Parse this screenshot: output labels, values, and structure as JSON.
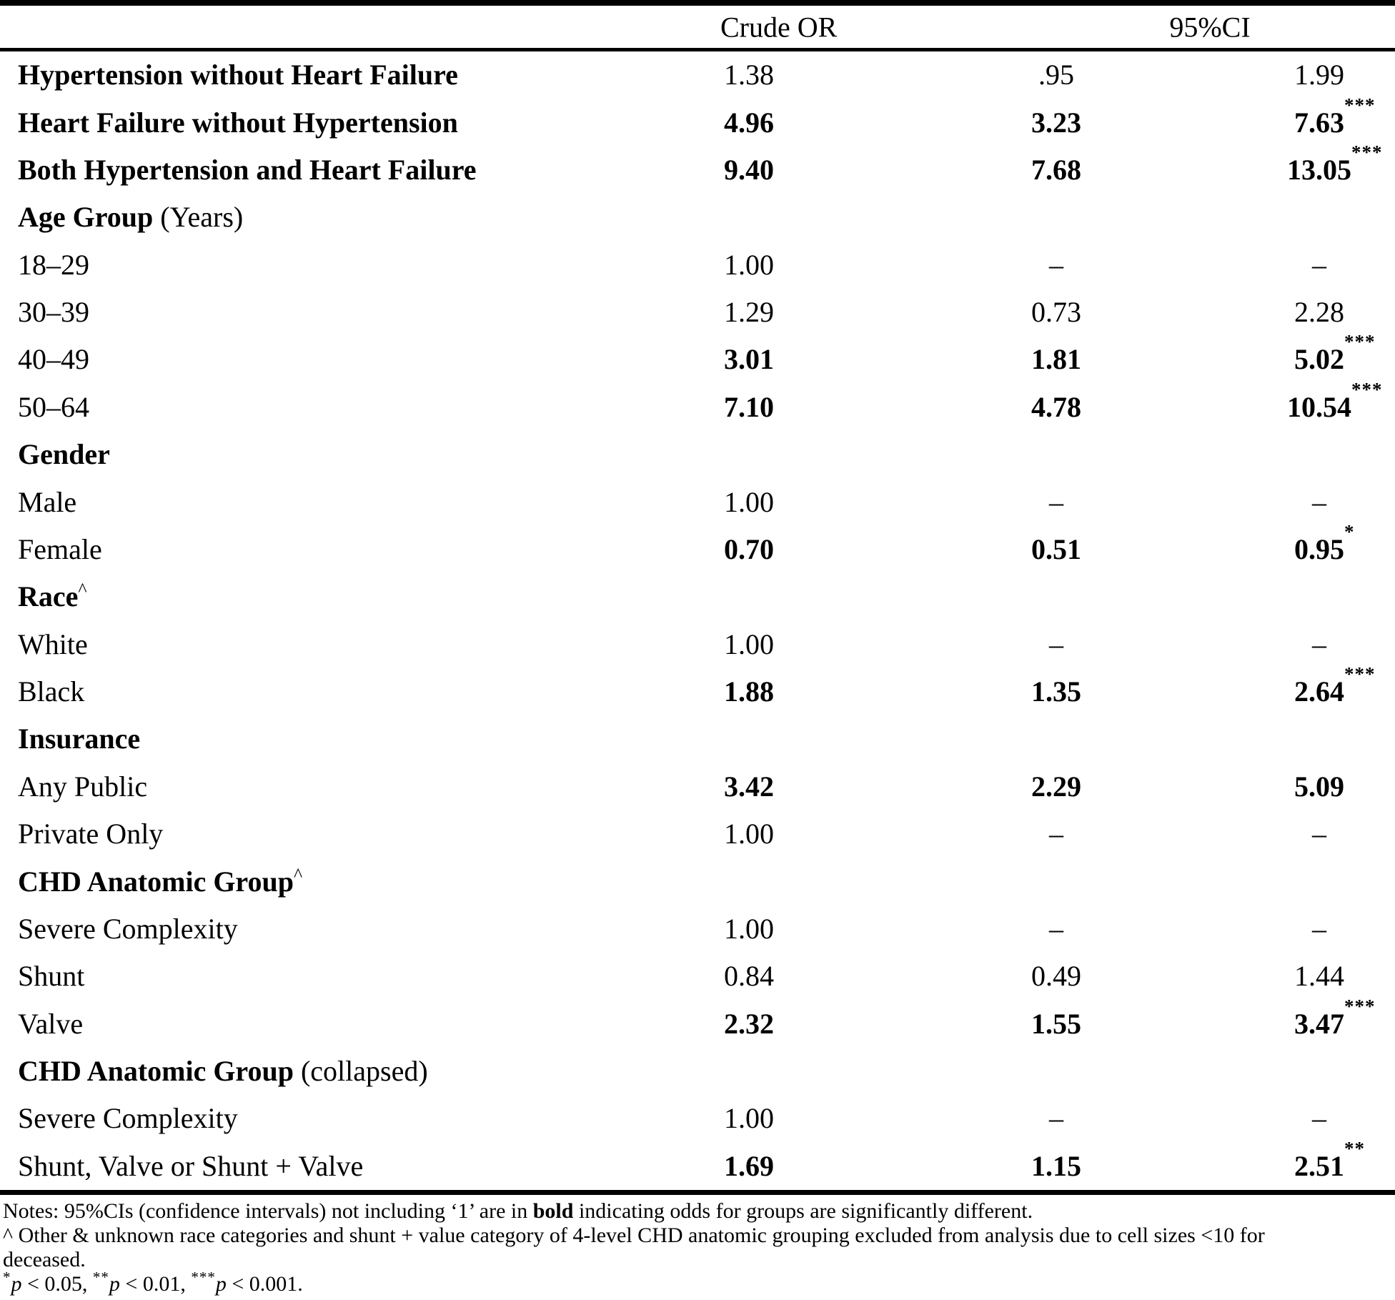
{
  "colors": {
    "text": "#000000",
    "background": "#ffffff",
    "rule": "#000000"
  },
  "table": {
    "headers": {
      "crude_or": "Crude OR",
      "ci": "95%CI"
    },
    "rows": [
      {
        "label": "Hypertension without Heart Failure",
        "label_bold": true,
        "label_sup": "",
        "label_suffix": "",
        "or": "1.38",
        "lo": ".95",
        "hi": "1.99",
        "stars": "",
        "values_bold": false,
        "section": false
      },
      {
        "label": "Heart Failure without Hypertension",
        "label_bold": true,
        "label_sup": "",
        "label_suffix": "",
        "or": "4.96",
        "lo": "3.23",
        "hi": "7.63",
        "stars": "***",
        "values_bold": true,
        "section": false
      },
      {
        "label": "Both Hypertension and Heart Failure",
        "label_bold": true,
        "label_sup": "",
        "label_suffix": "",
        "or": "9.40",
        "lo": "7.68",
        "hi": "13.05",
        "stars": "***",
        "values_bold": true,
        "section": false
      },
      {
        "label": "Age Group",
        "label_bold": true,
        "label_sup": "",
        "label_suffix": " (Years)",
        "or": "",
        "lo": "",
        "hi": "",
        "stars": "",
        "values_bold": false,
        "section": true
      },
      {
        "label": "18–29",
        "label_bold": false,
        "label_sup": "",
        "label_suffix": "",
        "or": "1.00",
        "lo": "–",
        "hi": "–",
        "stars": "",
        "values_bold": false,
        "section": false
      },
      {
        "label": "30–39",
        "label_bold": false,
        "label_sup": "",
        "label_suffix": "",
        "or": "1.29",
        "lo": "0.73",
        "hi": "2.28",
        "stars": "",
        "values_bold": false,
        "section": false
      },
      {
        "label": "40–49",
        "label_bold": false,
        "label_sup": "",
        "label_suffix": "",
        "or": "3.01",
        "lo": "1.81",
        "hi": "5.02",
        "stars": "***",
        "values_bold": true,
        "section": false
      },
      {
        "label": "50–64",
        "label_bold": false,
        "label_sup": "",
        "label_suffix": "",
        "or": "7.10",
        "lo": "4.78",
        "hi": "10.54",
        "stars": "***",
        "values_bold": true,
        "section": false
      },
      {
        "label": "Gender",
        "label_bold": true,
        "label_sup": "",
        "label_suffix": "",
        "or": "",
        "lo": "",
        "hi": "",
        "stars": "",
        "values_bold": false,
        "section": true
      },
      {
        "label": "Male",
        "label_bold": false,
        "label_sup": "",
        "label_suffix": "",
        "or": "1.00",
        "lo": "–",
        "hi": "–",
        "stars": "",
        "values_bold": false,
        "section": false
      },
      {
        "label": "Female",
        "label_bold": false,
        "label_sup": "",
        "label_suffix": "",
        "or": "0.70",
        "lo": "0.51",
        "hi": "0.95",
        "stars": "*",
        "values_bold": true,
        "section": false
      },
      {
        "label": "Race",
        "label_bold": true,
        "label_sup": "^",
        "label_suffix": "",
        "or": "",
        "lo": "",
        "hi": "",
        "stars": "",
        "values_bold": false,
        "section": true
      },
      {
        "label": "White",
        "label_bold": false,
        "label_sup": "",
        "label_suffix": "",
        "or": "1.00",
        "lo": "–",
        "hi": "–",
        "stars": "",
        "values_bold": false,
        "section": false
      },
      {
        "label": "Black",
        "label_bold": false,
        "label_sup": "",
        "label_suffix": "",
        "or": "1.88",
        "lo": "1.35",
        "hi": "2.64",
        "stars": "***",
        "values_bold": true,
        "section": false
      },
      {
        "label": "Insurance",
        "label_bold": true,
        "label_sup": "",
        "label_suffix": "",
        "or": "",
        "lo": "",
        "hi": "",
        "stars": "",
        "values_bold": false,
        "section": true
      },
      {
        "label": "Any Public",
        "label_bold": false,
        "label_sup": "",
        "label_suffix": "",
        "or": "3.42",
        "lo": "2.29",
        "hi": "5.09",
        "stars": "",
        "values_bold": true,
        "section": false
      },
      {
        "label": "Private Only",
        "label_bold": false,
        "label_sup": "",
        "label_suffix": "",
        "or": "1.00",
        "lo": "–",
        "hi": "–",
        "stars": "",
        "values_bold": false,
        "section": false
      },
      {
        "label": "CHD Anatomic Group",
        "label_bold": true,
        "label_sup": "^",
        "label_suffix": "",
        "or": "",
        "lo": "",
        "hi": "",
        "stars": "",
        "values_bold": false,
        "section": true
      },
      {
        "label": "Severe Complexity",
        "label_bold": false,
        "label_sup": "",
        "label_suffix": "",
        "or": "1.00",
        "lo": "–",
        "hi": "–",
        "stars": "",
        "values_bold": false,
        "section": false
      },
      {
        "label": "Shunt",
        "label_bold": false,
        "label_sup": "",
        "label_suffix": "",
        "or": "0.84",
        "lo": "0.49",
        "hi": "1.44",
        "stars": "",
        "values_bold": false,
        "section": false
      },
      {
        "label": "Valve",
        "label_bold": false,
        "label_sup": "",
        "label_suffix": "",
        "or": "2.32",
        "lo": "1.55",
        "hi": "3.47",
        "stars": "***",
        "values_bold": true,
        "section": false
      },
      {
        "label": "CHD Anatomic Group",
        "label_bold": true,
        "label_sup": "",
        "label_suffix": " (collapsed)",
        "or": "",
        "lo": "",
        "hi": "",
        "stars": "",
        "values_bold": false,
        "section": true
      },
      {
        "label": "Severe Complexity",
        "label_bold": false,
        "label_sup": "",
        "label_suffix": "",
        "or": "1.00",
        "lo": "–",
        "hi": "–",
        "stars": "",
        "values_bold": false,
        "section": false
      },
      {
        "label": "Shunt, Valve or Shunt + Valve",
        "label_bold": false,
        "label_sup": "",
        "label_suffix": "",
        "or": "1.69",
        "lo": "1.15",
        "hi": "2.51",
        "stars": "**",
        "values_bold": true,
        "section": false
      }
    ]
  },
  "notes": {
    "line1_pre": "Notes: 95%CIs (confidence intervals) not including ‘1’ are in ",
    "line1_bold": "bold",
    "line1_post": " indicating odds for groups are significantly different.",
    "line2": "^ Other & unknown race categories and shunt + value category of 4-level CHD anatomic grouping excluded from analysis due to cell sizes <10 for",
    "line3": "deceased.",
    "sig_levels": [
      {
        "stars": "*",
        "p": "p",
        "rest": " < 0.05, "
      },
      {
        "stars": "**",
        "p": "p",
        "rest": " < 0.01, "
      },
      {
        "stars": "***",
        "p": "p",
        "rest": " < 0.001."
      }
    ]
  }
}
